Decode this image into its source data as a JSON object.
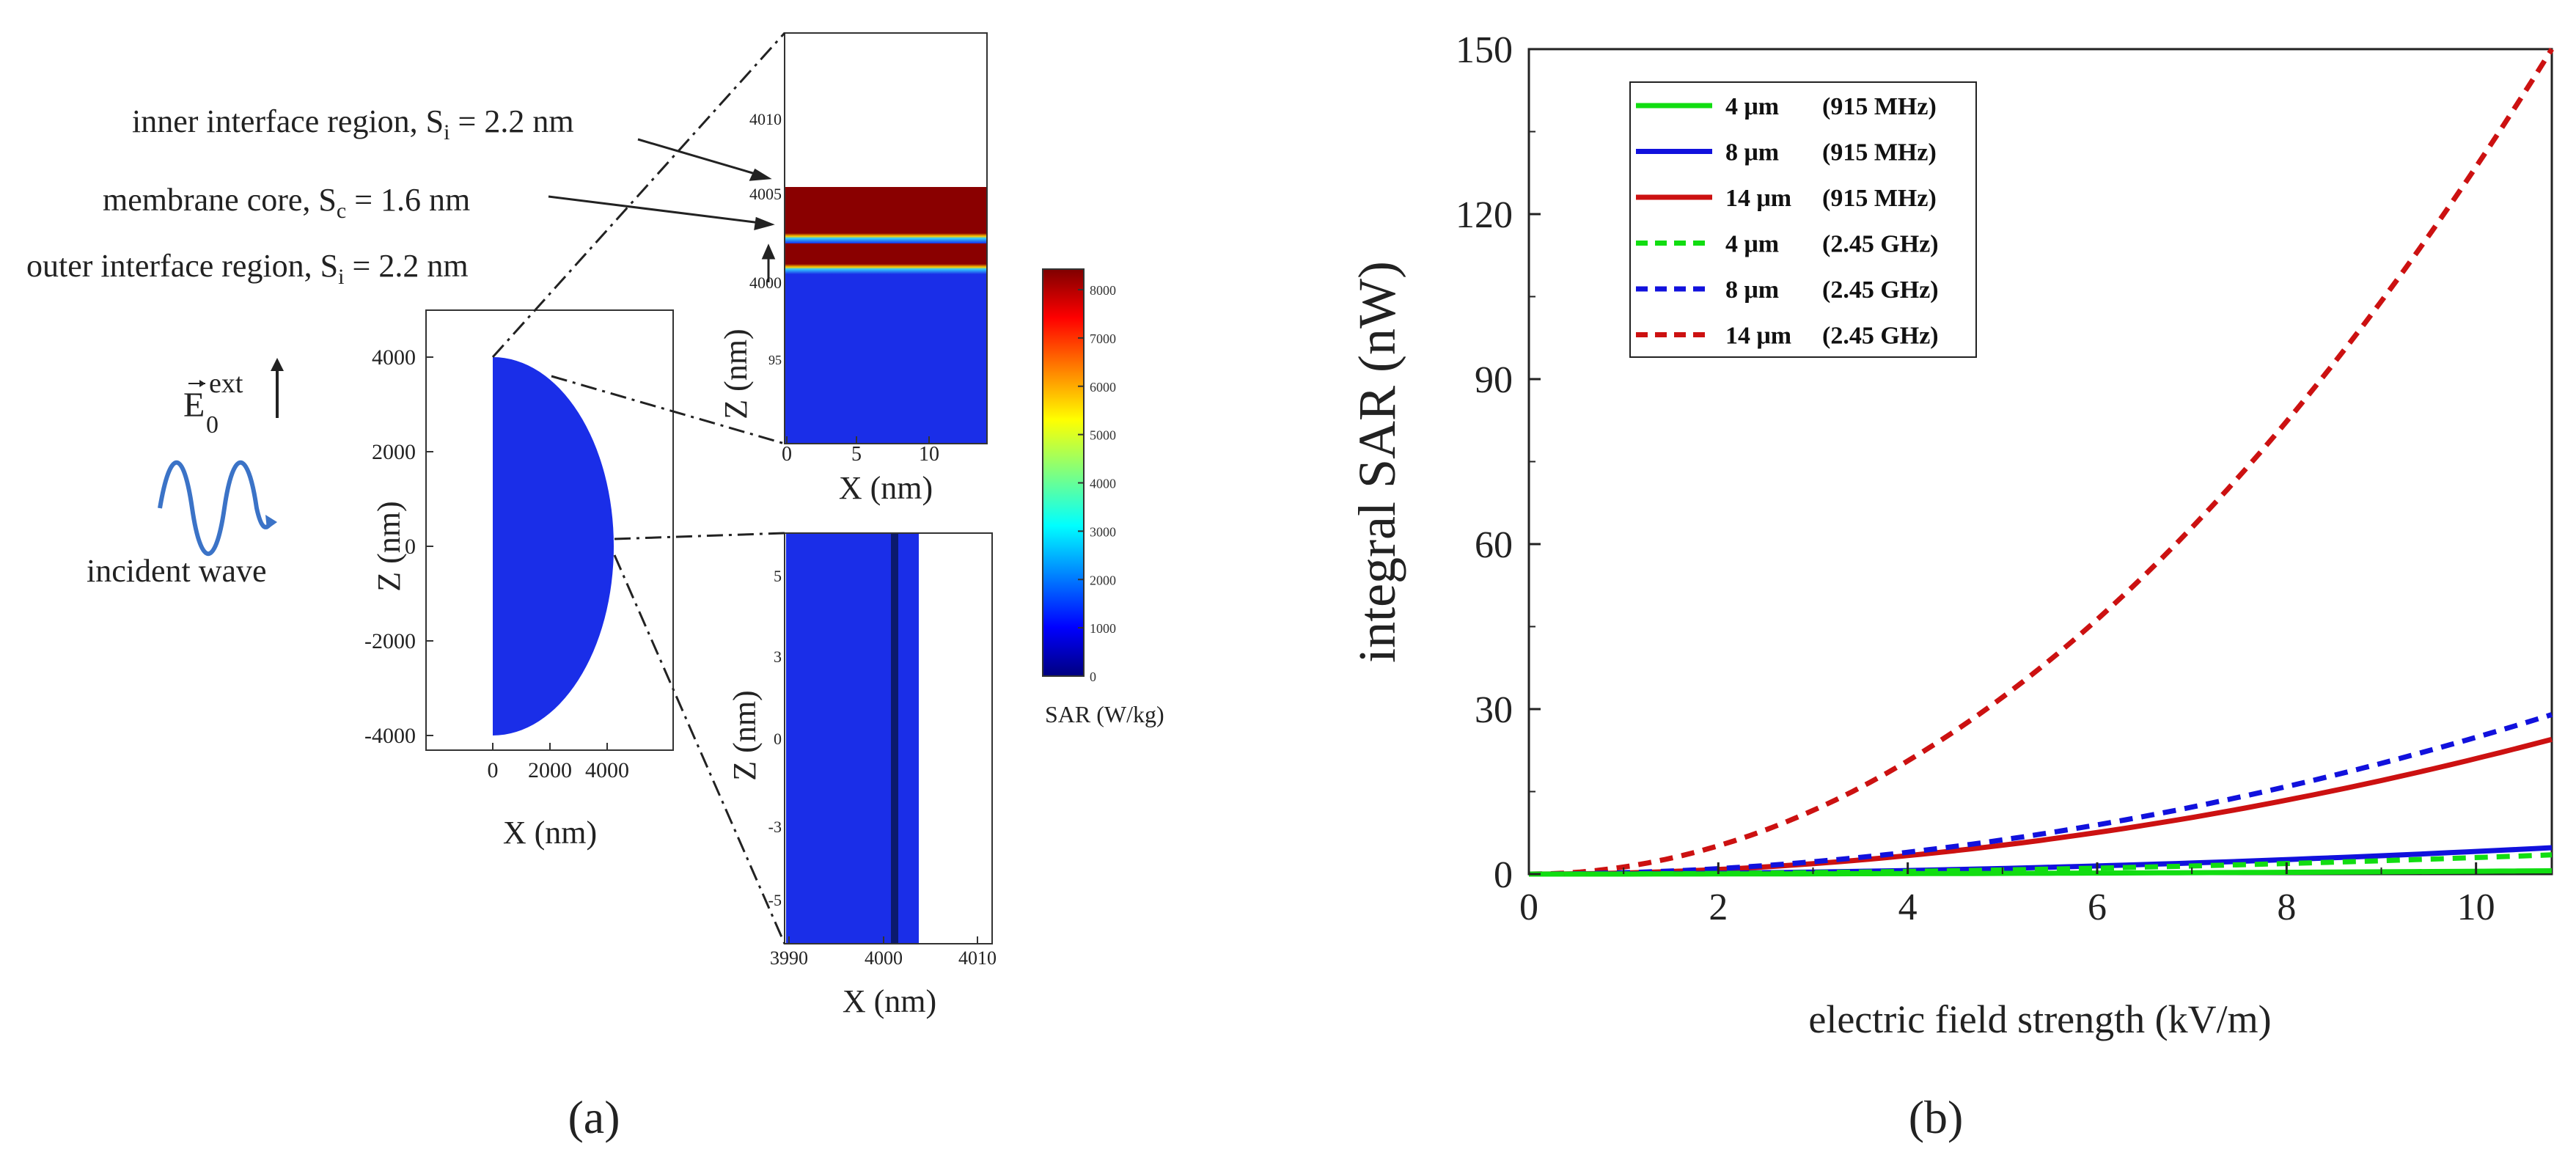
{
  "panel_a": {
    "label": "(a)",
    "annotations": {
      "inner_prefix": "inner interface region, S",
      "inner_sub": "i",
      "inner_value": " = 2.2 nm",
      "core_prefix": "membrane core, S",
      "core_sub": "c",
      "core_value": " = 1.6 nm",
      "outer_prefix": "outer interface region, S",
      "outer_sub": "i",
      "outer_value": " = 2.2 nm"
    },
    "field": {
      "symbol": "E",
      "sub": "0",
      "sup": "ext"
    },
    "wave_label": "incident wave",
    "main_plot": {
      "xlabel": "X (nm)",
      "ylabel": "Z (nm)",
      "xticks": [
        "0",
        "2000",
        "4000"
      ],
      "yticks": [
        "4000",
        "2000",
        "0",
        "-2000",
        "-4000"
      ],
      "fill_color": "#1a2ee8"
    },
    "top_inset": {
      "xlabel": "X (nm)",
      "ylabel": "Z (nm)",
      "xticks": [
        "0",
        "5",
        "10"
      ],
      "yticks": [
        "4010",
        "4005",
        "4000",
        "95"
      ],
      "colors": {
        "dark_red": "#8a0000",
        "blue": "#1a2ee8"
      }
    },
    "bottom_inset": {
      "xlabel": "X (nm)",
      "ylabel": "Z (nm)",
      "xticks": [
        "3990",
        "4000",
        "4010"
      ],
      "yticks": [
        "5",
        "3",
        "0",
        "-3",
        "-5"
      ]
    },
    "colorbar": {
      "label": "SAR (W/kg)",
      "ticks": [
        "8000",
        "7000",
        "6000",
        "5000",
        "4000",
        "3000",
        "2000",
        "1000",
        "0"
      ]
    }
  },
  "panel_b": {
    "label": "(b)"
  },
  "chart_data": {
    "type": "line",
    "title": "",
    "xlabel": "electric field strength (kV/m)",
    "ylabel": "integral SAR (nW)",
    "xlim": [
      0,
      10.8
    ],
    "ylim": [
      0,
      150
    ],
    "xticks": [
      0,
      2,
      4,
      6,
      8,
      10
    ],
    "yticks": [
      0,
      30,
      60,
      90,
      120,
      150
    ],
    "legend_position": "top-left",
    "series": [
      {
        "name": "4 μm",
        "freq": "(915 MHz)",
        "color": "#11dd11",
        "dash": false,
        "value_at_max": 0.6
      },
      {
        "name": "8 μm",
        "freq": "(915 MHz)",
        "color": "#1111dd",
        "dash": false,
        "value_at_max": 4.8
      },
      {
        "name": "14 μm",
        "freq": "(915 MHz)",
        "color": "#cc1111",
        "dash": false,
        "value_at_max": 24.5
      },
      {
        "name": "4 μm",
        "freq": "(2.45 GHz)",
        "color": "#11dd11",
        "dash": true,
        "value_at_max": 3.5
      },
      {
        "name": "8 μm",
        "freq": "(2.45 GHz)",
        "color": "#1111dd",
        "dash": true,
        "value_at_max": 29
      },
      {
        "name": "14 μm",
        "freq": "(2.45 GHz)",
        "color": "#cc1111",
        "dash": true,
        "value_at_max": 150
      }
    ]
  }
}
